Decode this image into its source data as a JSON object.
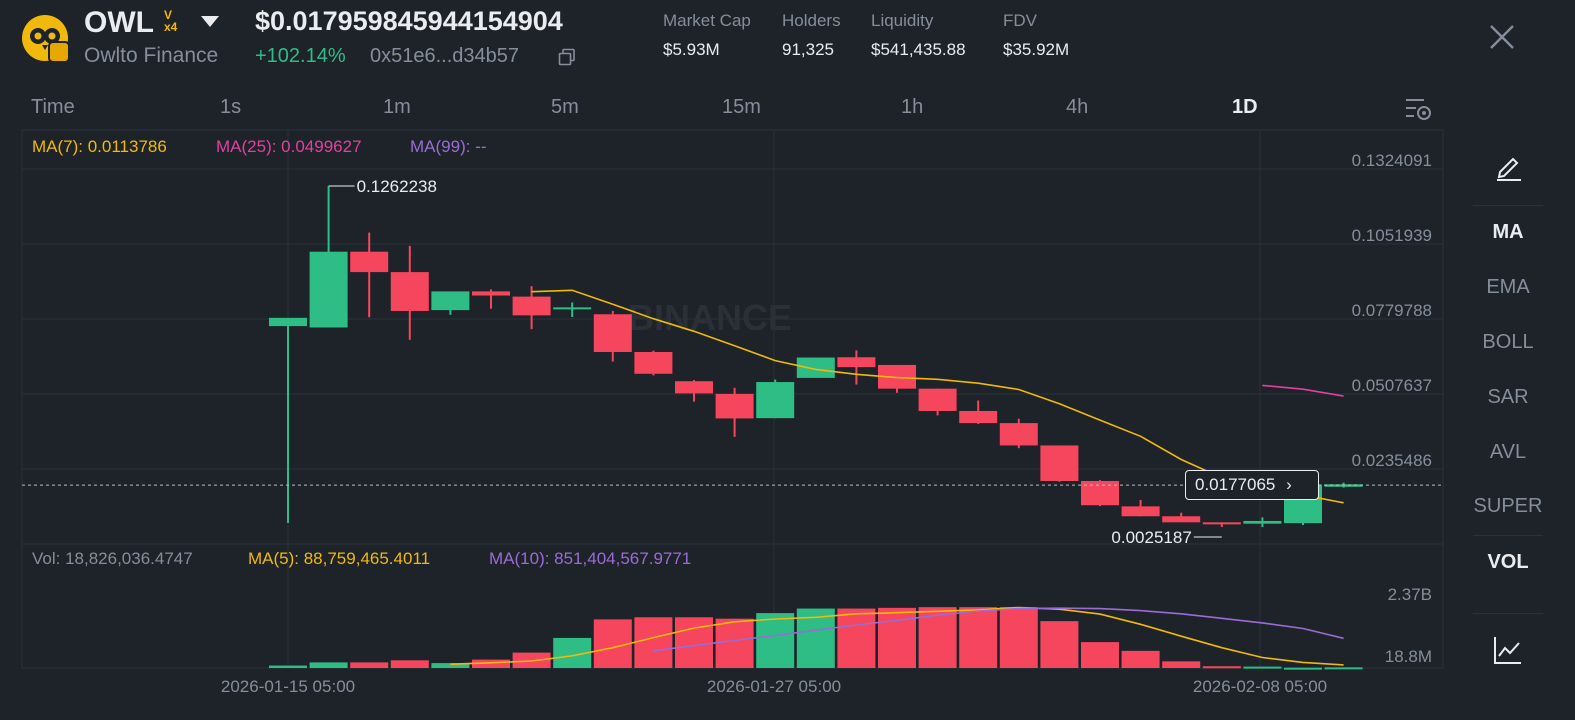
{
  "token": {
    "symbol": "OWL",
    "badge_top": "V",
    "badge_bottom": "x4",
    "name": "Owlto Finance",
    "price": "$0.017959845944154904",
    "change": "+102.14%",
    "contract": "0x51e6...d34b57"
  },
  "stats": [
    {
      "label": "Market Cap",
      "value": "$5.93M"
    },
    {
      "label": "Holders",
      "value": "91,325"
    },
    {
      "label": "Liquidity",
      "value": "$541,435.88"
    },
    {
      "label": "FDV",
      "value": "$35.92M"
    }
  ],
  "timeframes": [
    "Time",
    "1s",
    "1m",
    "5m",
    "15m",
    "1h",
    "4h",
    "1D"
  ],
  "active_timeframe": "1D",
  "ma_legend": {
    "ma7": "MA(7): 0.0113786",
    "ma25": "MA(25): 0.0499627",
    "ma99": "MA(99): --"
  },
  "vol_legend": {
    "vol": "Vol: 18,826,036.4747",
    "ma5": "MA(5): 88,759,465.4011",
    "ma10": "MA(10): 851,404,567.9771"
  },
  "watermark": "BINANCE",
  "indicators": [
    "MA",
    "EMA",
    "BOLL",
    "SAR",
    "AVL",
    "SUPER",
    "VOL"
  ],
  "active_indicators": [
    "MA",
    "VOL"
  ],
  "colors": {
    "up": "#2ebd85",
    "down": "#f6465d",
    "ma7": "#f0b90b",
    "ma25": "#e040a0",
    "ma99": "#9b6bd6",
    "bg": "#1e2329",
    "text_muted": "#848e9c"
  },
  "chart_data": {
    "type": "candlestick",
    "price_ticks": [
      "0.1324091",
      "0.1051939",
      "0.0779788",
      "0.0507637",
      "0.0235486"
    ],
    "volume_ticks": [
      "2.37B",
      "18.8M"
    ],
    "x_labels": [
      "2026-01-15 05:00",
      "2026-01-27 05:00",
      "2026-02-08 05:00"
    ],
    "high_label": "0.1262238",
    "low_label": "0.0025187",
    "current_price_label": "0.0177065",
    "candles": [
      {
        "o": 0.0754,
        "h": 0.0779,
        "l": 0.004,
        "c": 0.0784
      },
      {
        "o": 0.0749,
        "h": 0.1262,
        "l": 0.0749,
        "c": 0.1024
      },
      {
        "o": 0.1024,
        "h": 0.1093,
        "l": 0.0786,
        "c": 0.095
      },
      {
        "o": 0.095,
        "h": 0.1045,
        "l": 0.0704,
        "c": 0.0809
      },
      {
        "o": 0.0812,
        "h": 0.0872,
        "l": 0.0795,
        "c": 0.088
      },
      {
        "o": 0.088,
        "h": 0.0887,
        "l": 0.0817,
        "c": 0.0865
      },
      {
        "o": 0.0861,
        "h": 0.0899,
        "l": 0.0743,
        "c": 0.0793
      },
      {
        "o": 0.0818,
        "h": 0.084,
        "l": 0.0787,
        "c": 0.0822
      },
      {
        "o": 0.0797,
        "h": 0.0809,
        "l": 0.0625,
        "c": 0.066
      },
      {
        "o": 0.066,
        "h": 0.0665,
        "l": 0.0575,
        "c": 0.0581
      },
      {
        "o": 0.0554,
        "h": 0.0558,
        "l": 0.048,
        "c": 0.051
      },
      {
        "o": 0.0508,
        "h": 0.053,
        "l": 0.0352,
        "c": 0.0419
      },
      {
        "o": 0.042,
        "h": 0.056,
        "l": 0.042,
        "c": 0.0551
      },
      {
        "o": 0.0566,
        "h": 0.0638,
        "l": 0.0571,
        "c": 0.064
      },
      {
        "o": 0.0641,
        "h": 0.0666,
        "l": 0.0542,
        "c": 0.0605
      },
      {
        "o": 0.0613,
        "h": 0.0613,
        "l": 0.0512,
        "c": 0.0527
      },
      {
        "o": 0.0527,
        "h": 0.0527,
        "l": 0.043,
        "c": 0.0446
      },
      {
        "o": 0.0446,
        "h": 0.0484,
        "l": 0.0399,
        "c": 0.0402
      },
      {
        "o": 0.0402,
        "h": 0.0418,
        "l": 0.0311,
        "c": 0.0321
      },
      {
        "o": 0.0321,
        "h": 0.0321,
        "l": 0.0189,
        "c": 0.0192
      },
      {
        "o": 0.0192,
        "h": 0.0195,
        "l": 0.0101,
        "c": 0.0104
      },
      {
        "o": 0.01,
        "h": 0.0123,
        "l": 0.0064,
        "c": 0.0064
      },
      {
        "o": 0.0064,
        "h": 0.0077,
        "l": 0.0054,
        "c": 0.0042
      },
      {
        "o": 0.0042,
        "h": 0.0042,
        "l": 0.0025,
        "c": 0.004
      },
      {
        "o": 0.0037,
        "h": 0.006,
        "l": 0.0025,
        "c": 0.0047
      },
      {
        "o": 0.0039,
        "h": 0.0179,
        "l": 0.0032,
        "c": 0.0179
      },
      {
        "o": 0.0171,
        "h": 0.0186,
        "l": 0.0168,
        "c": 0.018
      }
    ],
    "volumes": [
      0.07,
      0.16,
      0.16,
      0.22,
      0.14,
      0.24,
      0.44,
      0.86,
      1.39,
      1.45,
      1.45,
      1.41,
      1.57,
      1.7,
      1.7,
      1.72,
      1.74,
      1.74,
      1.74,
      1.34,
      0.74,
      0.49,
      0.19,
      0.05,
      0.04,
      0.01,
      0.0188
    ],
    "volume_colors": [
      "up",
      "up",
      "down",
      "down",
      "up",
      "down",
      "down",
      "up",
      "down",
      "down",
      "down",
      "down",
      "up",
      "up",
      "down",
      "down",
      "down",
      "down",
      "down",
      "down",
      "down",
      "down",
      "down",
      "down",
      "up",
      "up",
      "up"
    ],
    "ma7_line": [
      null,
      null,
      null,
      null,
      null,
      null,
      0.0879,
      0.0884,
      0.0833,
      0.0781,
      0.0735,
      0.0683,
      0.0629,
      0.0597,
      0.0579,
      0.0567,
      0.0561,
      0.0547,
      0.0524,
      0.0472,
      0.0413,
      0.0354,
      0.027,
      0.0204,
      0.0162,
      0.0141,
      0.0113
    ],
    "ma25_line": [
      null,
      null,
      null,
      null,
      null,
      null,
      null,
      null,
      null,
      null,
      null,
      null,
      null,
      null,
      null,
      null,
      null,
      null,
      null,
      null,
      null,
      null,
      null,
      null,
      0.0539,
      0.0525,
      0.05
    ],
    "vol_ma5_line": [
      null,
      null,
      null,
      null,
      0.11,
      0.15,
      0.2,
      0.35,
      0.58,
      0.87,
      1.14,
      1.32,
      1.4,
      1.45,
      1.55,
      1.58,
      1.62,
      1.66,
      1.73,
      1.68,
      1.54,
      1.25,
      0.91,
      0.58,
      0.3,
      0.16,
      0.089
    ],
    "vol_ma10_line": [
      null,
      null,
      null,
      null,
      null,
      null,
      null,
      null,
      null,
      0.49,
      0.64,
      0.79,
      0.93,
      1.08,
      1.23,
      1.36,
      1.51,
      1.63,
      1.7,
      1.71,
      1.7,
      1.64,
      1.55,
      1.42,
      1.29,
      1.13,
      0.85
    ]
  }
}
